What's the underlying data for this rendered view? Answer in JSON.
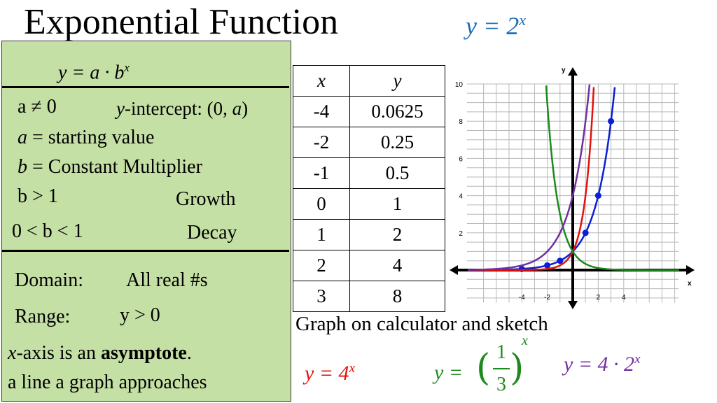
{
  "title": "Exponential Function",
  "main_equation": {
    "lhs": "y = 2",
    "exp": "x",
    "color": "#1f6fb5"
  },
  "summary": {
    "general_form": {
      "text": "y = a · b",
      "exp": "x"
    },
    "a_not_zero": "a ≠ 0",
    "y_intercept": {
      "prefix": "y",
      "text": "-intercept: (0, ",
      "a": "a",
      "close": ")"
    },
    "a_def": {
      "var": "a",
      "text": " = starting value"
    },
    "b_def": {
      "var": "b",
      "text": " = Constant Multiplier"
    },
    "growth": {
      "condition": "b > 1",
      "label": "Growth"
    },
    "decay": {
      "condition": "0 < b < 1",
      "label": "Decay"
    },
    "domain": {
      "label": "Domain:",
      "value": "All real #s"
    },
    "range": {
      "label": "Range:",
      "value": "y > 0"
    },
    "asymptote": {
      "var": "x",
      "text1": "-axis is an ",
      "bold": "asymptote",
      "text2": ".",
      "line2": "a line a graph approaches"
    }
  },
  "table": {
    "headers": [
      "x",
      "y"
    ],
    "rows": [
      [
        "-4",
        "0.0625"
      ],
      [
        "-2",
        "0.25"
      ],
      [
        "-1",
        "0.5"
      ],
      [
        "0",
        "1"
      ],
      [
        "1",
        "2"
      ],
      [
        "2",
        "4"
      ],
      [
        "3",
        "8"
      ]
    ]
  },
  "note": "Graph on calculator and sketch",
  "equations": {
    "red": {
      "text": "y = 4",
      "exp": "x",
      "color": "#e3120b"
    },
    "green": {
      "lhs": "y =",
      "num": "1",
      "den": "3",
      "exp": "x",
      "color": "#1e8a1e"
    },
    "purple": {
      "text": "y = 4 · 2",
      "exp": "x",
      "color": "#7030a0"
    }
  },
  "chart_data": {
    "type": "line",
    "xlabel": "x",
    "ylabel": "y",
    "xlim": [
      -4,
      4
    ],
    "ylim": [
      0,
      10
    ],
    "x_ticks": [
      "-4",
      "-2",
      "2",
      "4"
    ],
    "y_ticks": [
      "2",
      "4",
      "6",
      "8",
      "10"
    ],
    "grid": true,
    "series": [
      {
        "name": "y = 2^x",
        "color": "#0a1fd6",
        "base": 2,
        "coef": 1,
        "points": [
          [
            -4,
            0.0625
          ],
          [
            -2,
            0.25
          ],
          [
            -1,
            0.5
          ],
          [
            1,
            2
          ],
          [
            2,
            4
          ],
          [
            3,
            8
          ]
        ]
      },
      {
        "name": "y = 4^x",
        "color": "#e3120b",
        "base": 4,
        "coef": 1
      },
      {
        "name": "y = (1/3)^x",
        "color": "#1e8a1e",
        "base": 0.3333333,
        "coef": 1
      },
      {
        "name": "y = 4 · 2^x",
        "color": "#7030a0",
        "base": 2,
        "coef": 4
      }
    ]
  }
}
